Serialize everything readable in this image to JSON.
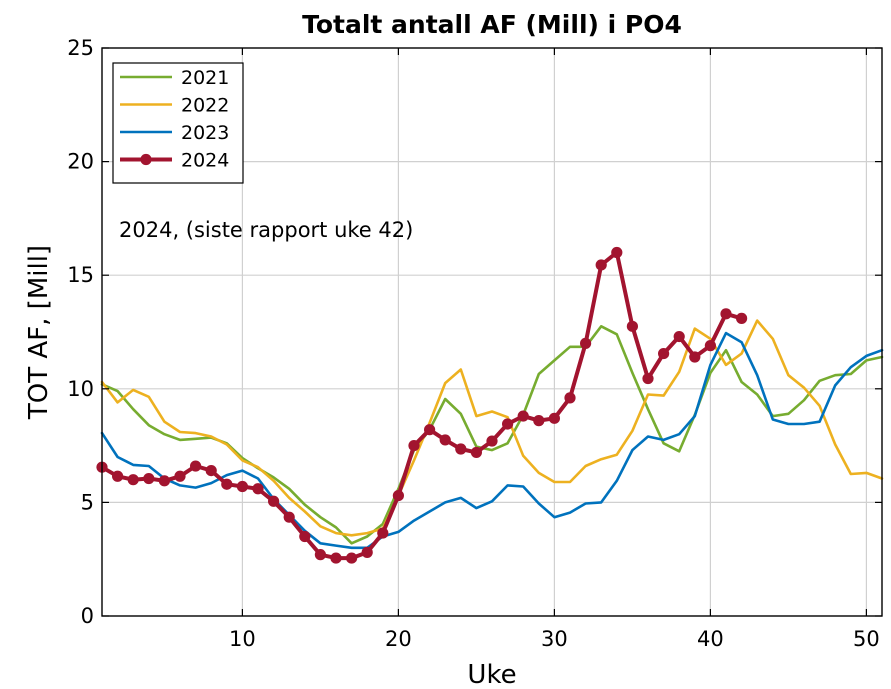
{
  "chart_data": {
    "type": "line",
    "title": "Totalt antall AF (Mill) i PO4",
    "xlabel": "Uke",
    "ylabel": "TOT AF, [Mill]",
    "xlim": [
      1,
      51
    ],
    "ylim": [
      0,
      25
    ],
    "xticks": [
      10,
      20,
      30,
      40,
      50
    ],
    "yticks": [
      0,
      5,
      10,
      15,
      20,
      25
    ],
    "grid": true,
    "legend_position": "top-left",
    "annotation": "2024, (siste rapport uke 42)",
    "series": [
      {
        "name": "2021",
        "color": "#77ac30",
        "markers": false,
        "x": [
          1,
          2,
          3,
          4,
          5,
          6,
          7,
          8,
          9,
          10,
          11,
          12,
          13,
          14,
          15,
          16,
          17,
          18,
          19,
          20,
          21,
          22,
          23,
          24,
          25,
          26,
          27,
          28,
          29,
          30,
          31,
          32,
          33,
          34,
          35,
          36,
          37,
          38,
          39,
          40,
          41,
          42,
          43,
          44,
          45,
          46,
          47,
          48,
          49,
          50,
          51
        ],
        "y": [
          10.2,
          9.9,
          9.1,
          8.4,
          8.0,
          7.75,
          7.8,
          7.85,
          7.6,
          6.95,
          6.5,
          6.1,
          5.6,
          4.9,
          4.35,
          3.9,
          3.2,
          3.5,
          4.05,
          5.6,
          7.3,
          8.2,
          9.55,
          8.9,
          7.45,
          7.3,
          7.6,
          8.85,
          10.65,
          11.25,
          11.85,
          11.85,
          12.75,
          12.4,
          10.7,
          9.1,
          7.6,
          7.25,
          8.85,
          10.7,
          11.7,
          10.3,
          9.75,
          8.8,
          8.9,
          9.5,
          10.35,
          10.6,
          10.65,
          11.25,
          11.4
        ]
      },
      {
        "name": "2022",
        "color": "#edb120",
        "markers": false,
        "x": [
          1,
          2,
          3,
          4,
          5,
          6,
          7,
          8,
          9,
          10,
          11,
          12,
          13,
          14,
          15,
          16,
          17,
          18,
          19,
          20,
          21,
          22,
          23,
          24,
          25,
          26,
          27,
          28,
          29,
          30,
          31,
          32,
          33,
          34,
          35,
          36,
          37,
          38,
          39,
          40,
          41,
          42,
          43,
          44,
          45,
          46,
          47,
          48,
          49,
          50,
          51
        ],
        "y": [
          10.3,
          9.4,
          9.95,
          9.65,
          8.55,
          8.1,
          8.05,
          7.9,
          7.55,
          6.85,
          6.55,
          5.95,
          5.2,
          4.6,
          3.95,
          3.65,
          3.55,
          3.65,
          3.85,
          5.3,
          6.85,
          8.5,
          10.25,
          10.85,
          8.8,
          9.0,
          8.75,
          7.05,
          6.3,
          5.9,
          5.9,
          6.6,
          6.9,
          7.1,
          8.15,
          9.75,
          9.7,
          10.75,
          12.65,
          12.2,
          11.05,
          11.55,
          13.0,
          12.2,
          10.6,
          10.05,
          9.25,
          7.55,
          6.25,
          6.3,
          6.05
        ]
      },
      {
        "name": "2023",
        "color": "#0072bd",
        "markers": false,
        "x": [
          1,
          2,
          3,
          4,
          5,
          6,
          7,
          8,
          9,
          10,
          11,
          12,
          13,
          14,
          15,
          16,
          17,
          18,
          19,
          20,
          21,
          22,
          23,
          24,
          25,
          26,
          27,
          28,
          29,
          30,
          31,
          32,
          33,
          34,
          35,
          36,
          37,
          38,
          39,
          40,
          41,
          42,
          43,
          44,
          45,
          46,
          47,
          48,
          49,
          50,
          51
        ],
        "y": [
          8.05,
          7.0,
          6.65,
          6.6,
          6.05,
          5.75,
          5.65,
          5.85,
          6.2,
          6.4,
          6.05,
          5.15,
          4.45,
          3.75,
          3.2,
          3.1,
          3.0,
          3.0,
          3.5,
          3.7,
          4.2,
          4.6,
          5.0,
          5.2,
          4.75,
          5.05,
          5.75,
          5.7,
          4.95,
          4.35,
          4.55,
          4.95,
          5.0,
          5.95,
          7.3,
          7.9,
          7.75,
          8.0,
          8.8,
          11.05,
          12.45,
          12.05,
          10.6,
          8.65,
          8.45,
          8.45,
          8.55,
          10.15,
          10.95,
          11.45,
          11.7
        ]
      },
      {
        "name": "2024",
        "color": "#a2142f",
        "markers": true,
        "x": [
          1,
          2,
          3,
          4,
          5,
          6,
          7,
          8,
          9,
          10,
          11,
          12,
          13,
          14,
          15,
          16,
          17,
          18,
          19,
          20,
          21,
          22,
          23,
          24,
          25,
          26,
          27,
          28,
          29,
          30,
          31,
          32,
          33,
          34,
          35,
          36,
          37,
          38,
          39,
          40,
          41,
          42
        ],
        "y": [
          6.55,
          6.15,
          6.0,
          6.05,
          5.95,
          6.15,
          6.6,
          6.4,
          5.8,
          5.7,
          5.6,
          5.05,
          4.35,
          3.5,
          2.7,
          2.55,
          2.55,
          2.8,
          3.65,
          5.3,
          7.5,
          8.2,
          7.75,
          7.35,
          7.2,
          7.7,
          8.45,
          8.8,
          8.6,
          8.7,
          9.6,
          12.0,
          15.45,
          16.0,
          12.75,
          10.45,
          11.55,
          12.3,
          11.4,
          11.9,
          13.3,
          13.1
        ]
      }
    ]
  }
}
